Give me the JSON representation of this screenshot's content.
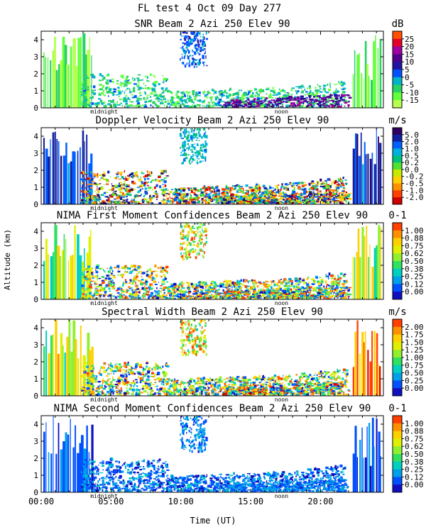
{
  "title": "FL test   4 Oct 09 Day 277",
  "ylabel": "Altitude (km)",
  "xlabel": "Time (UT)",
  "x_ticks": [
    "00:00",
    "05:00",
    "10:00",
    "15:00",
    "20:00"
  ],
  "x_tick_hours": [
    0,
    5,
    10,
    15,
    20
  ],
  "x_range_hours": [
    0,
    24.5
  ],
  "y_ticks": [
    "0",
    "1",
    "2",
    "3",
    "4"
  ],
  "y_range_km": [
    0,
    4.5
  ],
  "marker_labels": [
    "midnight",
    "noon"
  ],
  "marker_hours": [
    4.5,
    17.2
  ],
  "colors": {
    "snr": [
      "#b4ff50",
      "#64ff3c",
      "#28d264",
      "#00b4c8",
      "#0050ff",
      "#1e14a0",
      "#50008c",
      "#a000a0",
      "#e60028",
      "#ff5000",
      "#ff9600",
      "#ffc800"
    ],
    "doppler": [
      "#d00000",
      "#ff4000",
      "#ff9000",
      "#ffd000",
      "#c8e800",
      "#50e030",
      "#00c080",
      "#00b0e0",
      "#0060ff",
      "#1020a0",
      "#300060"
    ],
    "moment": [
      "#1010c0",
      "#0050ff",
      "#00a0e8",
      "#00d0c0",
      "#30e060",
      "#90f030",
      "#e0f000",
      "#ffd000",
      "#ff9000",
      "#ff4000",
      "#e00000"
    ],
    "width": [
      "#1010c0",
      "#0050ff",
      "#00a0e8",
      "#00d0c0",
      "#30e060",
      "#90f030",
      "#e0f000",
      "#ffd000",
      "#ff9000",
      "#ff4000",
      "#e00000"
    ]
  },
  "chart_data": [
    {
      "type": "heatmap",
      "title": "SNR Beam 2 Azi 250 Elev 90",
      "unit": "dB",
      "scheme": "snr",
      "legend_labels": [
        "25",
        "20",
        "15",
        "10",
        "5",
        "0",
        "-5",
        "-10",
        "-15"
      ],
      "ylabel": "Altitude (km)",
      "xlabel": "Time (UT)"
    },
    {
      "type": "heatmap",
      "title": "Doppler Velocity Beam 2 Azi 250 Elev 90",
      "unit": "m/s",
      "scheme": "doppler",
      "legend_labels": [
        "5.0",
        "2.0",
        "1.0",
        "0.5",
        "0.2",
        "0.0",
        "-0.2",
        "-0.5",
        "-1.0",
        "-2.0"
      ]
    },
    {
      "type": "heatmap",
      "title": "NIMA First Moment Confidences Beam 2 Azi 250 Elev 90",
      "unit": "0-1",
      "scheme": "moment",
      "legend_labels": [
        "1.00",
        "0.88",
        "0.75",
        "0.62",
        "0.50",
        "0.38",
        "0.25",
        "0.12",
        "0.00"
      ]
    },
    {
      "type": "heatmap",
      "title": "Spectral Width Beam 2 Azi 250 Elev 90",
      "unit": "m/s",
      "scheme": "width",
      "legend_labels": [
        "2.00",
        "1.75",
        "1.50",
        "1.25",
        "1.00",
        "0.75",
        "0.50",
        "0.25",
        "0.00"
      ]
    },
    {
      "type": "heatmap",
      "title": "NIMA Second Moment Confidences Beam 2 Azi 250 Elev 90",
      "unit": "0-1",
      "scheme": "moment",
      "legend_labels": [
        "1.00",
        "0.88",
        "0.75",
        "0.62",
        "0.50",
        "0.38",
        "0.25",
        "0.12",
        "0.00"
      ]
    }
  ]
}
